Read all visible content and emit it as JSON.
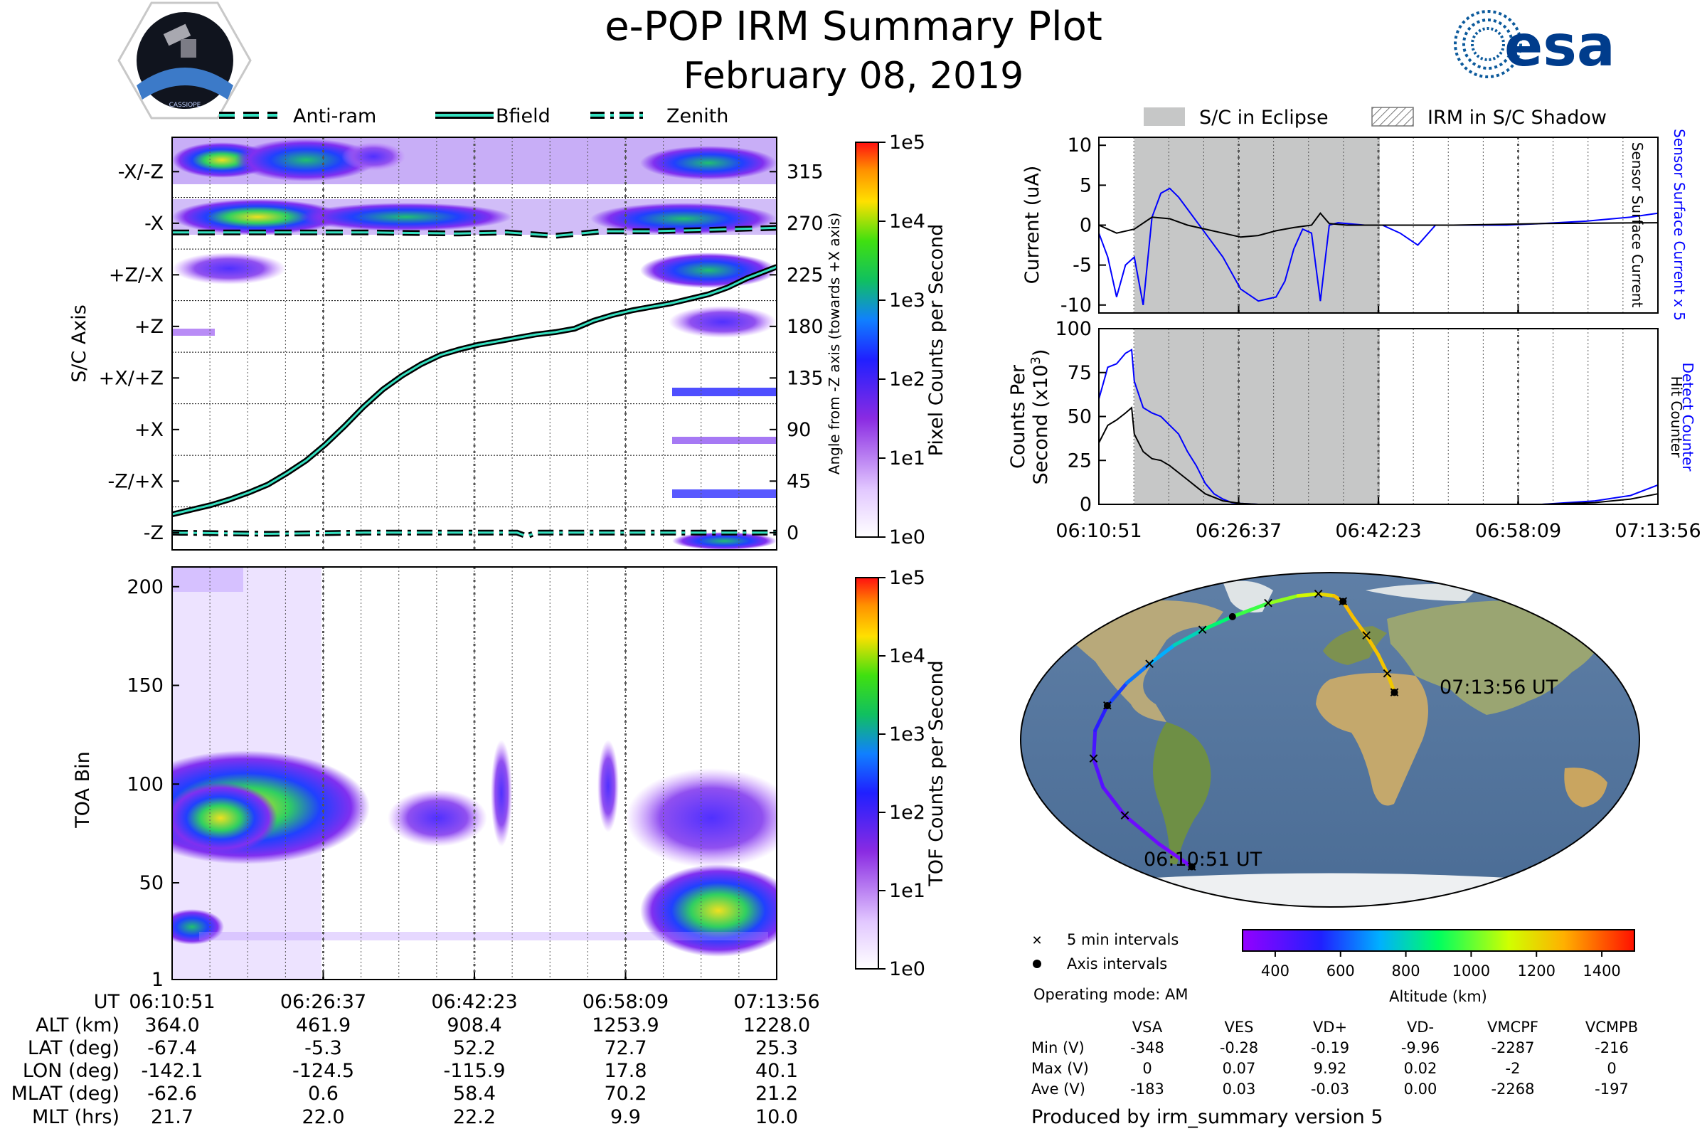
{
  "title": "e-POP IRM Summary Plot",
  "date": "February 08, 2019",
  "logos": {
    "cassiope": "CASSIOPE",
    "esa": "esa"
  },
  "colors": {
    "black": "#000000",
    "blue": "#0000ff",
    "bfield": "#35e0c0",
    "eclipse": "#c6c7c7",
    "panel_bg": "#ffffff"
  },
  "chart_data": [
    {
      "id": "sc_axis_panel",
      "type": "heatmap",
      "ylabel": "S/C Axis",
      "y2label": "Angle from -Z axis (towards +X axis)",
      "axis_labels": [
        "-X/-Z",
        "-X",
        "+Z/-X",
        "+Z",
        "+X/+Z",
        "+X",
        "-Z/+X",
        "-Z"
      ],
      "angle_ticks": [
        315,
        270,
        225,
        180,
        135,
        90,
        45,
        0
      ],
      "ylim": [
        -15,
        345
      ],
      "legend": [
        "Anti-ram",
        "Bfield",
        "Zenith"
      ],
      "colorbar": {
        "label": "Pixel Counts per Second",
        "ticks": [
          "1e5",
          "1e4",
          "1e3",
          "1e2",
          "1e1",
          "1e0"
        ]
      },
      "series": [
        {
          "name": "Bfield",
          "x_min": [
            0,
            2,
            4,
            6,
            8,
            10,
            12,
            14,
            16,
            18,
            20,
            22,
            24,
            26,
            28,
            30,
            32,
            34,
            36,
            38,
            40,
            42,
            44,
            46,
            48,
            50,
            52,
            54,
            56,
            58,
            60,
            63.1
          ],
          "y": [
            16,
            20,
            24,
            29,
            35,
            42,
            52,
            63,
            77,
            93,
            110,
            125,
            137,
            147,
            155,
            160,
            164,
            167,
            170,
            173,
            175,
            178,
            185,
            190,
            194,
            197,
            200,
            204,
            208,
            214,
            222,
            232
          ]
        },
        {
          "name": "Anti-ram",
          "x_min": [
            0,
            10,
            20,
            30,
            35,
            40,
            45,
            50,
            55,
            63.1
          ],
          "y": [
            262,
            262,
            262,
            261,
            262,
            259,
            263,
            263,
            264,
            266
          ]
        },
        {
          "name": "Zenith",
          "x_min": [
            0,
            10,
            20,
            30,
            36,
            37,
            38,
            45,
            55,
            63.1
          ],
          "y": [
            0,
            -1,
            0,
            0,
            0,
            -3,
            0,
            0,
            0,
            0
          ]
        }
      ]
    },
    {
      "id": "toa_panel",
      "type": "heatmap",
      "ylabel": "TOA Bin",
      "yticks": [
        200,
        150,
        100,
        50,
        1
      ],
      "ylim": [
        1,
        210
      ],
      "colorbar": {
        "label": "TOF Counts per Second",
        "ticks": [
          "1e5",
          "1e4",
          "1e3",
          "1e2",
          "1e1",
          "1e0"
        ]
      }
    },
    {
      "id": "current_panel",
      "type": "line",
      "ylabel": "Current (uA)",
      "y2label": "Sensor Surface Current x 5",
      "y2label_black": "Sensor Surface Current",
      "yticks": [
        10,
        5,
        0,
        -5,
        -10
      ],
      "ylim": [
        -11,
        11
      ],
      "legend": [
        "S/C in Eclipse",
        "IRM in S/C Shadow"
      ],
      "eclipse_min": [
        4,
        31.7
      ],
      "series": [
        {
          "name": "Sensor Surface Current x 5",
          "color": "blue",
          "x_min": [
            0,
            1,
            2,
            3,
            4,
            5,
            6,
            7,
            8,
            9,
            10,
            12,
            14,
            16,
            18,
            20,
            21,
            22,
            23,
            24,
            25,
            26,
            27,
            28,
            29,
            30,
            31,
            32,
            34,
            36,
            38,
            40,
            42,
            44,
            46,
            50,
            55,
            60,
            63.1
          ],
          "y": [
            -1,
            -4,
            -9,
            -5,
            -4,
            -10,
            1,
            4,
            4.6,
            3.5,
            2,
            -1,
            -4,
            -8,
            -9.5,
            -9,
            -7,
            -3,
            -0.5,
            -1,
            -9.5,
            0,
            0.3,
            0.2,
            0.1,
            0,
            0,
            0,
            -1,
            -2.5,
            0,
            0,
            0,
            0,
            0,
            0.2,
            0.5,
            1,
            1.5
          ]
        },
        {
          "name": "Sensor Surface Current",
          "color": "black",
          "x_min": [
            0,
            2,
            4,
            6,
            8,
            10,
            12,
            14,
            16,
            18,
            20,
            22,
            24,
            25,
            26,
            28,
            30,
            32,
            36,
            40,
            50,
            63.1
          ],
          "y": [
            0,
            -1,
            -0.5,
            1,
            0.8,
            0,
            -0.5,
            -1,
            -1.5,
            -1.3,
            -0.7,
            -0.3,
            0,
            1.5,
            0.2,
            0,
            0,
            0,
            0,
            0,
            0.2,
            0.3
          ]
        }
      ]
    },
    {
      "id": "counts_panel",
      "type": "line",
      "ylabel": "Counts Per Second (x10^3)",
      "ylabel_line1": "Counts Per",
      "ylabel_line2": "Second (x10",
      "ylabel_sup": "3",
      "y2label": "Detect Counter",
      "y2label_black": "Hit Counter",
      "yticks": [
        100,
        75,
        50,
        25,
        0
      ],
      "ylim": [
        0,
        100
      ],
      "series": [
        {
          "name": "Detect Counter",
          "color": "blue",
          "x_min": [
            0,
            1,
            2,
            3,
            3.7,
            4,
            5,
            6,
            7,
            8,
            9,
            10,
            11,
            12,
            13,
            14,
            15,
            16,
            18,
            20,
            30,
            40,
            50,
            56,
            60,
            63.1
          ],
          "y": [
            60,
            78,
            80,
            86,
            88,
            70,
            55,
            52,
            50,
            45,
            40,
            30,
            22,
            12,
            6,
            3,
            1,
            0.5,
            0,
            0,
            0,
            0,
            0,
            2,
            5,
            11
          ]
        },
        {
          "name": "Hit Counter",
          "color": "black",
          "x_min": [
            0,
            1,
            2,
            3,
            3.7,
            4,
            5,
            6,
            7,
            8,
            9,
            10,
            11,
            12,
            14,
            16,
            18,
            20,
            30,
            40,
            50,
            56,
            60,
            63.1
          ],
          "y": [
            35,
            45,
            48,
            52,
            55,
            40,
            30,
            26,
            25,
            22,
            18,
            14,
            10,
            6,
            2,
            0.5,
            0,
            0,
            0,
            0,
            0,
            1,
            3,
            6
          ]
        }
      ]
    },
    {
      "id": "orbit_map",
      "type": "scatter",
      "start_label": "06:10:51 UT",
      "end_label": "07:13:56 UT",
      "colorbar": {
        "label": "Altitude (km)",
        "ticks": [
          400,
          600,
          800,
          1000,
          1200,
          1400
        ],
        "range": [
          300,
          1500
        ]
      },
      "track": {
        "lon_deg": [
          -140,
          -141,
          -142,
          -141,
          -139,
          -137,
          -134,
          -130,
          -125,
          -120,
          -110,
          -95,
          -70,
          -40,
          -15,
          5,
          15,
          22,
          30,
          35,
          38,
          40
        ],
        "lat_deg": [
          -67,
          -55,
          -40,
          -25,
          -10,
          5,
          18,
          30,
          40,
          50,
          58,
          65,
          72,
          76,
          77,
          76,
          73,
          65,
          55,
          45,
          35,
          25
        ],
        "altitude_km": [
          364,
          380,
          400,
          430,
          460,
          520,
          580,
          650,
          720,
          800,
          880,
          960,
          1050,
          1130,
          1200,
          1250,
          1260,
          1250,
          1245,
          1240,
          1235,
          1228
        ]
      }
    }
  ],
  "time_ticks": [
    "06:10:51",
    "06:26:37",
    "06:42:23",
    "06:58:09",
    "07:13:56"
  ],
  "ephemeris": {
    "labels": [
      "UT",
      "ALT (km)",
      "LAT (deg)",
      "LON (deg)",
      "MLAT (deg)",
      "MLT (hrs)"
    ],
    "columns": [
      [
        "06:10:51",
        "364.0",
        "-67.4",
        "-142.1",
        "-62.6",
        "21.7"
      ],
      [
        "06:26:37",
        "461.9",
        "-5.3",
        "-124.5",
        "0.6",
        "22.0"
      ],
      [
        "06:42:23",
        "908.4",
        "52.2",
        "-115.9",
        "58.4",
        "22.2"
      ],
      [
        "06:58:09",
        "1253.9",
        "72.7",
        "17.8",
        "70.2",
        "9.9"
      ],
      [
        "07:13:56",
        "1228.0",
        "25.3",
        "40.1",
        "21.2",
        "10.0"
      ]
    ]
  },
  "map_legend": {
    "cross": "5 min intervals",
    "dot": "Axis intervals"
  },
  "operating_mode": "Operating mode: AM",
  "voltage_table": {
    "headers": [
      "VSA",
      "VES",
      "VD+",
      "VD-",
      "VMCPF",
      "VCMPB"
    ],
    "rows": [
      {
        "label": "Min (V)",
        "values": [
          "-348",
          "-0.28",
          "-0.19",
          "-9.96",
          "-2287",
          "-216"
        ]
      },
      {
        "label": "Max (V)",
        "values": [
          "0",
          "0.07",
          "9.92",
          "0.02",
          "-2",
          "0"
        ]
      },
      {
        "label": "Ave (V)",
        "values": [
          "-183",
          "0.03",
          "-0.03",
          "0.00",
          "-2268",
          "-197"
        ]
      }
    ]
  },
  "footer": "Produced by irm_summary version 5"
}
